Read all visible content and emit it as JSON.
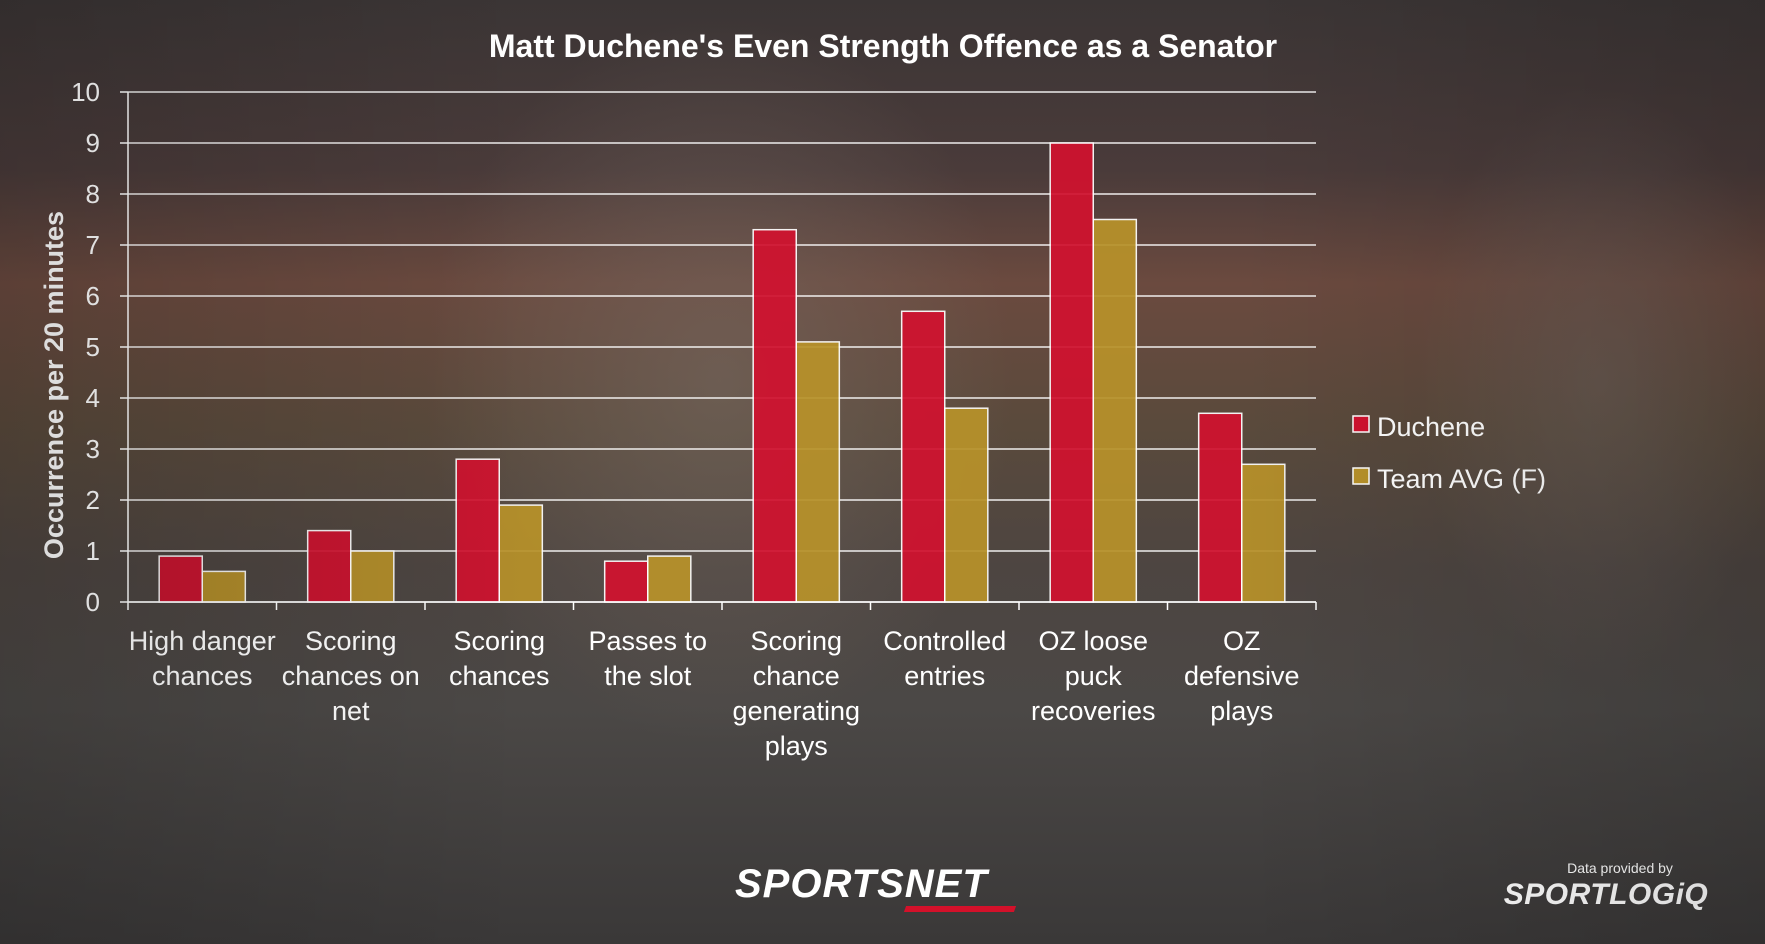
{
  "chart_data": {
    "type": "bar",
    "title": "Matt Duchene's Even Strength Offence as a Senator",
    "ylabel": "Occurrence per 20 minutes",
    "xlabel": "",
    "ylim": [
      0,
      10
    ],
    "yticks": [
      "0",
      "1",
      "2",
      "3",
      "4",
      "5",
      "6",
      "7",
      "8",
      "9",
      "10"
    ],
    "grid": true,
    "legend_position": "right",
    "categories": [
      [
        "High danger",
        "chances"
      ],
      [
        "Scoring",
        "chances on",
        "net"
      ],
      [
        "Scoring",
        "chances"
      ],
      [
        "Passes to",
        "the slot"
      ],
      [
        "Scoring",
        "chance",
        "generating",
        "plays"
      ],
      [
        "Controlled",
        "entries"
      ],
      [
        "OZ loose",
        "puck",
        "recoveries"
      ],
      [
        "OZ",
        "defensive",
        "plays"
      ]
    ],
    "series": [
      {
        "name": "Duchene",
        "color": "#d1122f",
        "values": [
          0.9,
          1.4,
          2.8,
          0.8,
          7.3,
          5.7,
          9.0,
          3.7
        ]
      },
      {
        "name": "Team AVG (F)",
        "color": "#b8922a",
        "values": [
          0.6,
          1.0,
          1.9,
          0.9,
          5.1,
          3.8,
          7.5,
          2.7
        ]
      }
    ]
  },
  "branding": {
    "sportsnet": "SPORTSNET",
    "provided_by": "Data provided by",
    "sportlogiq": "SPORTLOGiQ"
  }
}
